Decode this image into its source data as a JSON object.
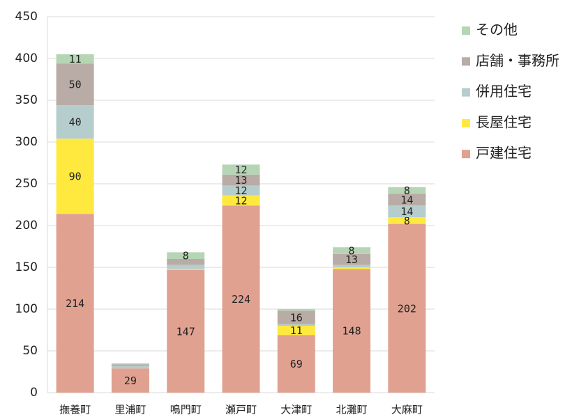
{
  "chart_data": {
    "type": "stacked_bar",
    "categories": [
      "撫養町",
      "里浦町",
      "鳴門町",
      "瀬戸町",
      "大津町",
      "北灘町",
      "大麻町"
    ],
    "series": [
      {
        "name": "戸建住宅",
        "color": "#e0a191",
        "values": [
          214,
          29,
          147,
          224,
          69,
          148,
          202
        ]
      },
      {
        "name": "長屋住宅",
        "color": "#ffe93f",
        "values": [
          90,
          0,
          1,
          12,
          11,
          2,
          8
        ]
      },
      {
        "name": "併用住宅",
        "color": "#b5cdcd",
        "values": [
          40,
          3,
          5,
          12,
          2,
          3,
          14
        ]
      },
      {
        "name": "店舗・事務所",
        "color": "#b9aba5",
        "values": [
          50,
          2,
          7,
          13,
          16,
          13,
          14
        ]
      },
      {
        "name": "その他",
        "color": "#b5d5b5",
        "values": [
          11,
          1,
          8,
          12,
          2,
          8,
          8
        ]
      }
    ],
    "ylim": [
      0,
      450
    ],
    "yticks": [
      0,
      50,
      100,
      150,
      200,
      250,
      300,
      350,
      400,
      450
    ],
    "grid": true,
    "legend": "right"
  }
}
